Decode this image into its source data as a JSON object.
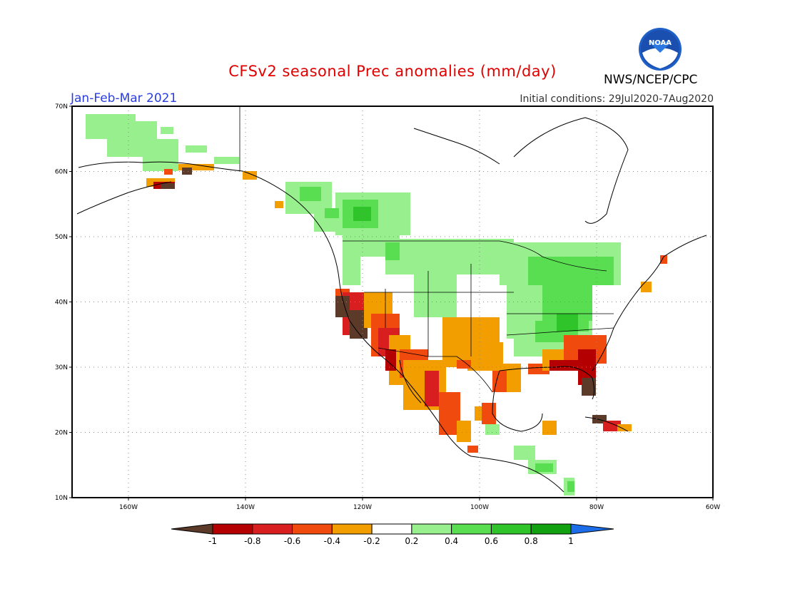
{
  "header": {
    "title": "CFSv2 seasonal Prec anomalies (mm/day)",
    "season": "Jan-Feb-Mar 2021",
    "initial_conditions": "Initial conditions: 29Jul2020-7Aug2020",
    "organization": "NWS/NCEP/CPC",
    "logo_text": "NOAA"
  },
  "axes": {
    "lat_labels": [
      "70N",
      "60N",
      "50N",
      "40N",
      "30N",
      "20N",
      "10N"
    ],
    "lon_labels": [
      "160W",
      "140W",
      "120W",
      "100W",
      "80W",
      "60W"
    ]
  },
  "colorbar": {
    "labels": [
      "-1",
      "-0.8",
      "-0.6",
      "-0.4",
      "-0.2",
      "0.2",
      "0.4",
      "0.6",
      "0.8",
      "1"
    ],
    "colors": [
      "#5b3a29",
      "#b40000",
      "#d81e1e",
      "#f04a0e",
      "#f29e00",
      "#ffffff",
      "#98ef8e",
      "#58de50",
      "#2ec42a",
      "#10a010",
      "#1e6de8"
    ]
  }
}
